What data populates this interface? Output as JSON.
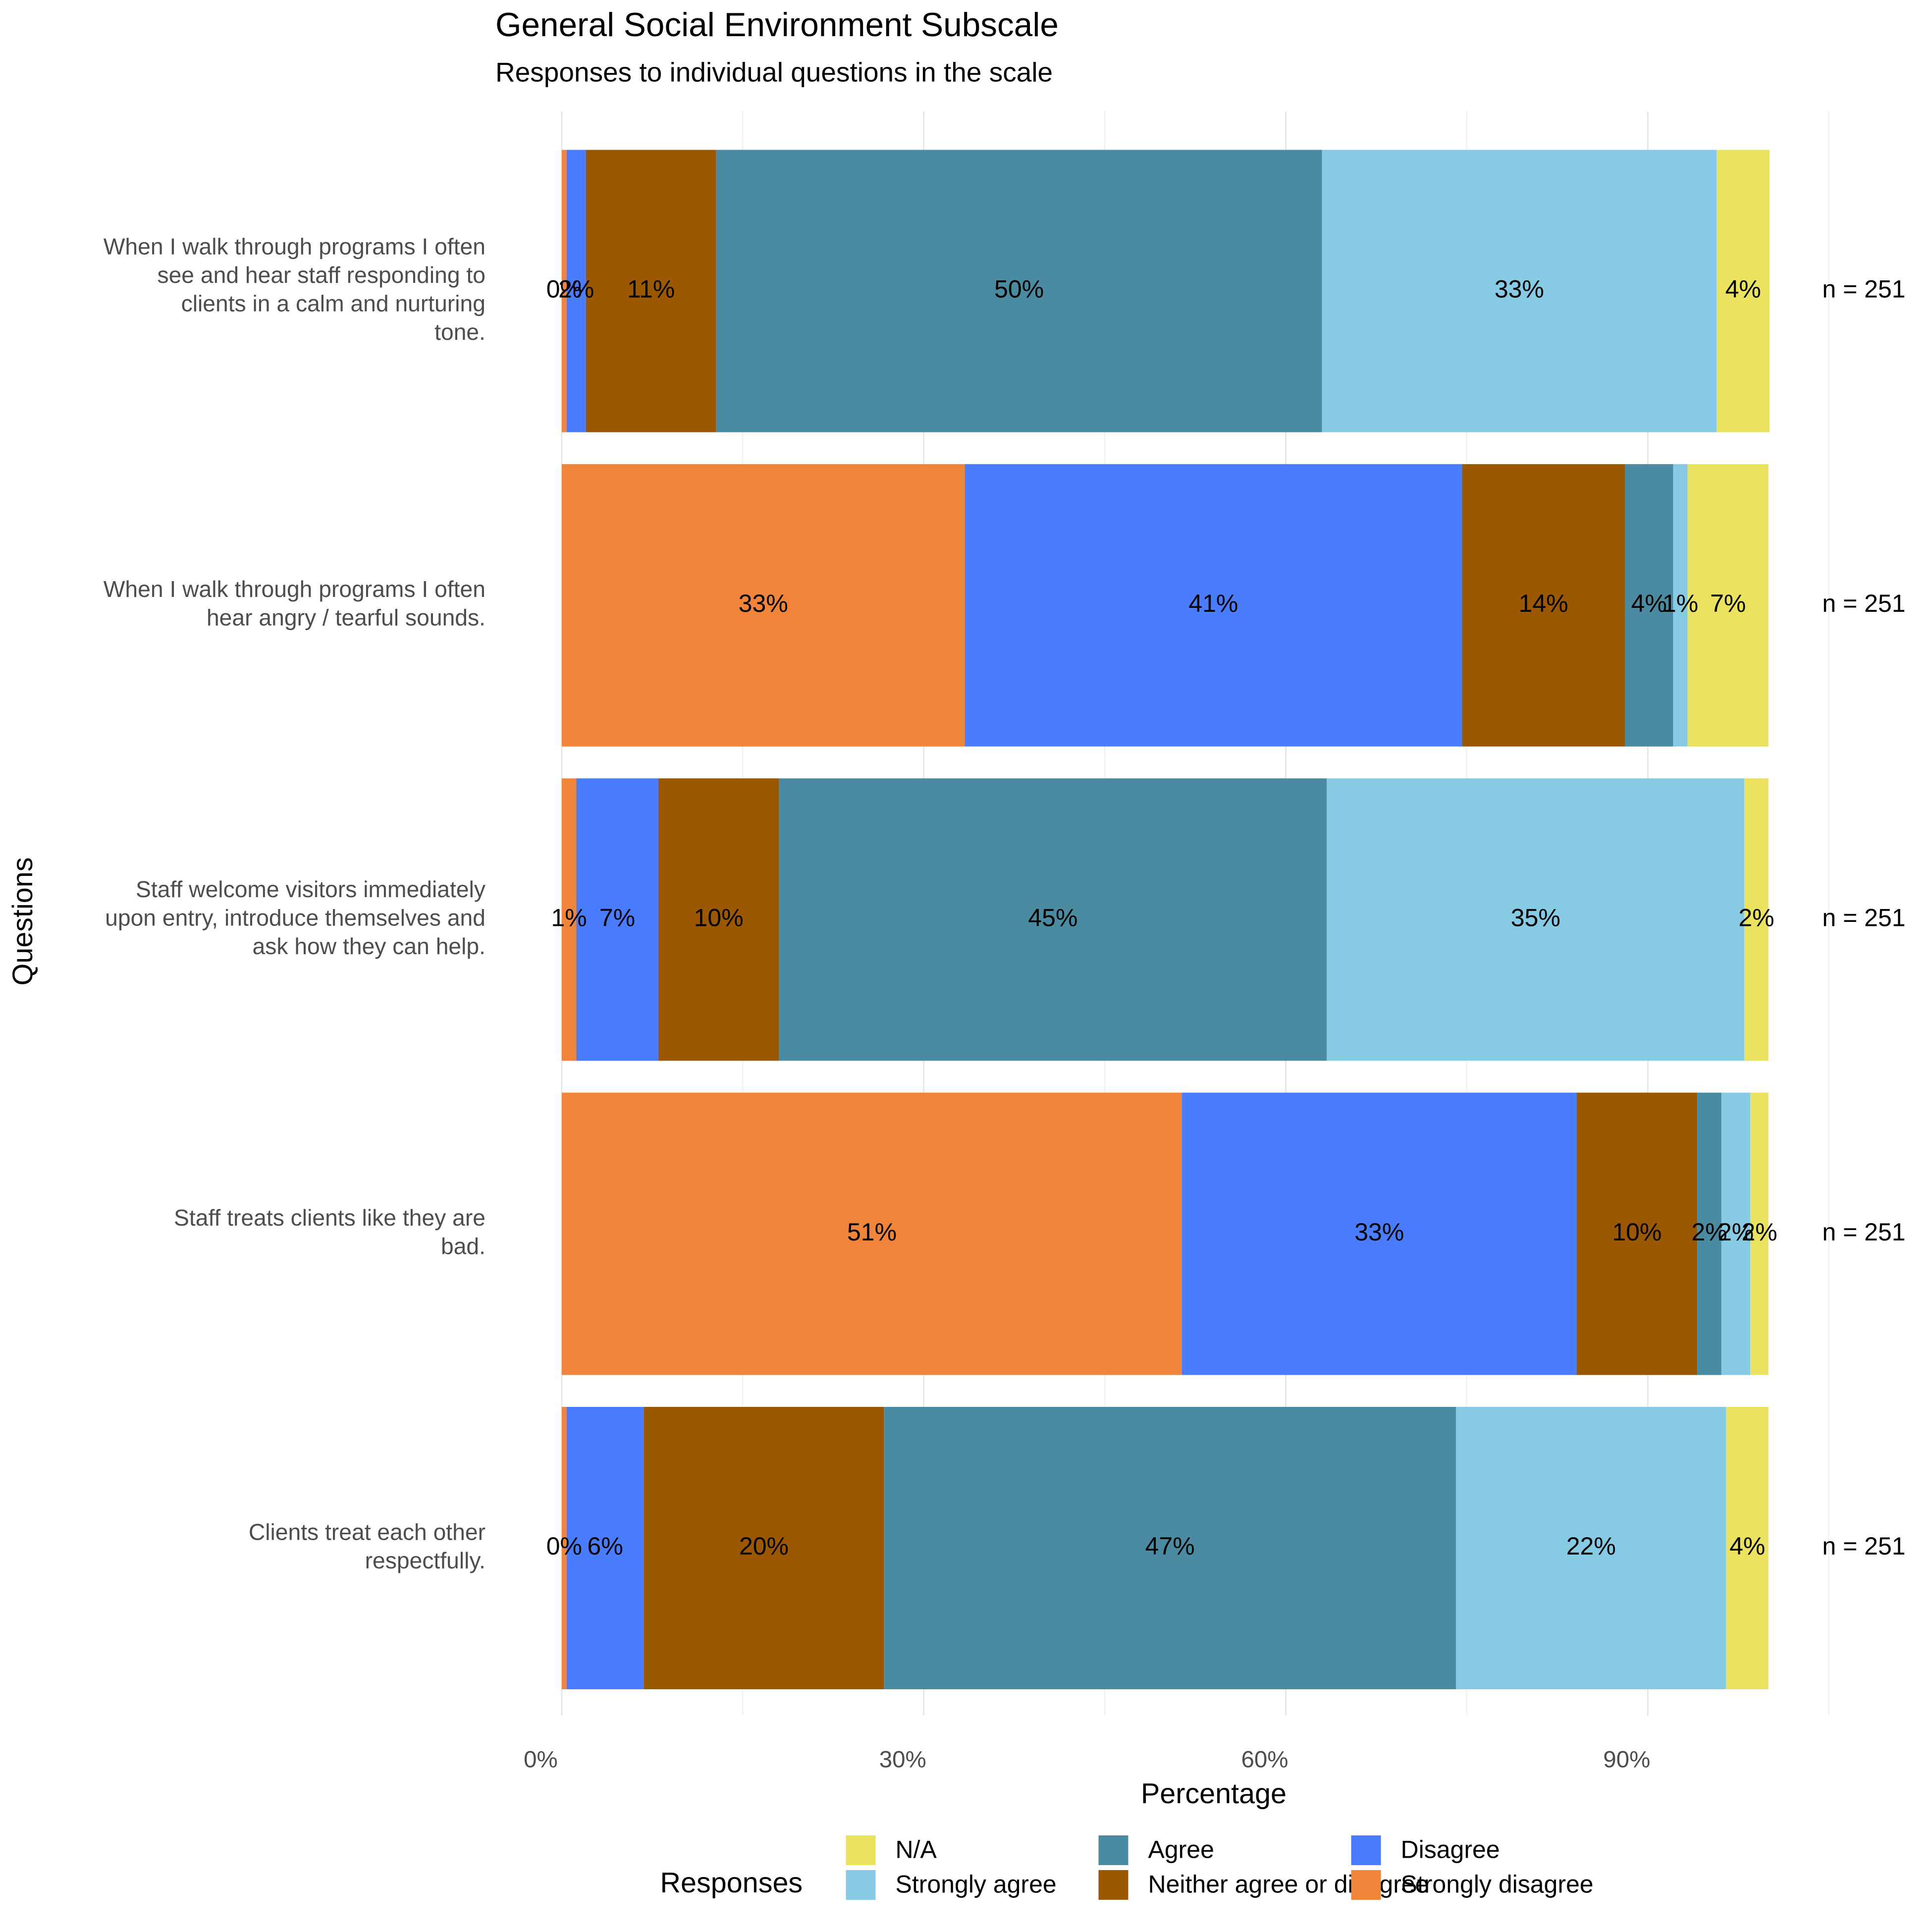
{
  "chart_data": {
    "type": "stacked-barh",
    "title": "General Social Environment Subscale",
    "subtitle": "Responses to individual questions in the scale",
    "x_label": "Percentage",
    "y_label": "Questions",
    "legend_title": "Responses",
    "categories": [
      "When I walk through programs I often see and hear staff responding to clients in a calm and nurturing tone.",
      "When I walk through programs I often hear angry / tearful sounds.",
      "Staff welcome visitors immediately upon entry, introduce themselves and ask how they can help.",
      "Staff treats clients like they are bad.",
      "Clients treat each other respectfully."
    ],
    "annotations": [
      "n = 251",
      "n = 251",
      "n = 251",
      "n = 251",
      "n = 251"
    ],
    "series": [
      {
        "name": "Strongly disagree",
        "color": "#f0843a",
        "values": [
          0.4,
          33.4,
          1.2,
          51.4,
          0.4
        ],
        "value_labels": [
          "0%",
          "33%",
          "1%",
          "51%",
          "0%"
        ]
      },
      {
        "name": "Disagree",
        "color": "#497dfd",
        "values": [
          1.6,
          41.2,
          6.8,
          32.7,
          6.4
        ],
        "value_labels": [
          "2%",
          "41%",
          "7%",
          "33%",
          "6%"
        ]
      },
      {
        "name": "Neither agree or disagree",
        "color": "#9c5800",
        "values": [
          10.8,
          13.5,
          10.0,
          10.0,
          19.9
        ],
        "value_labels": [
          "11%",
          "14%",
          "10%",
          "10%",
          "20%"
        ]
      },
      {
        "name": "Agree",
        "color": "#4a8ba1",
        "values": [
          50.2,
          4.0,
          45.4,
          2.0,
          47.4
        ],
        "value_labels": [
          "50%",
          "4%",
          "45%",
          "2%",
          "47%"
        ]
      },
      {
        "name": "Strongly agree",
        "color": "#87cae4",
        "values": [
          32.7,
          1.2,
          34.6,
          2.4,
          22.4
        ],
        "value_labels": [
          "33%",
          "1%",
          "35%",
          "2%",
          "22%"
        ]
      },
      {
        "name": "N/A",
        "color": "#ebe35f",
        "values": [
          4.4,
          6.7,
          2.0,
          1.5,
          3.5
        ],
        "value_labels": [
          "4%",
          "7%",
          "2%",
          "2%",
          "4%"
        ]
      }
    ],
    "xlim": [
      -5.5,
      111.5
    ],
    "xticks": [
      {
        "value": 0,
        "label": "0%"
      },
      {
        "value": 30,
        "label": "30%"
      },
      {
        "value": 60,
        "label": "60%"
      },
      {
        "value": 90,
        "label": "90%"
      }
    ],
    "xminor": [
      15,
      45,
      75,
      105
    ],
    "grid": true
  }
}
